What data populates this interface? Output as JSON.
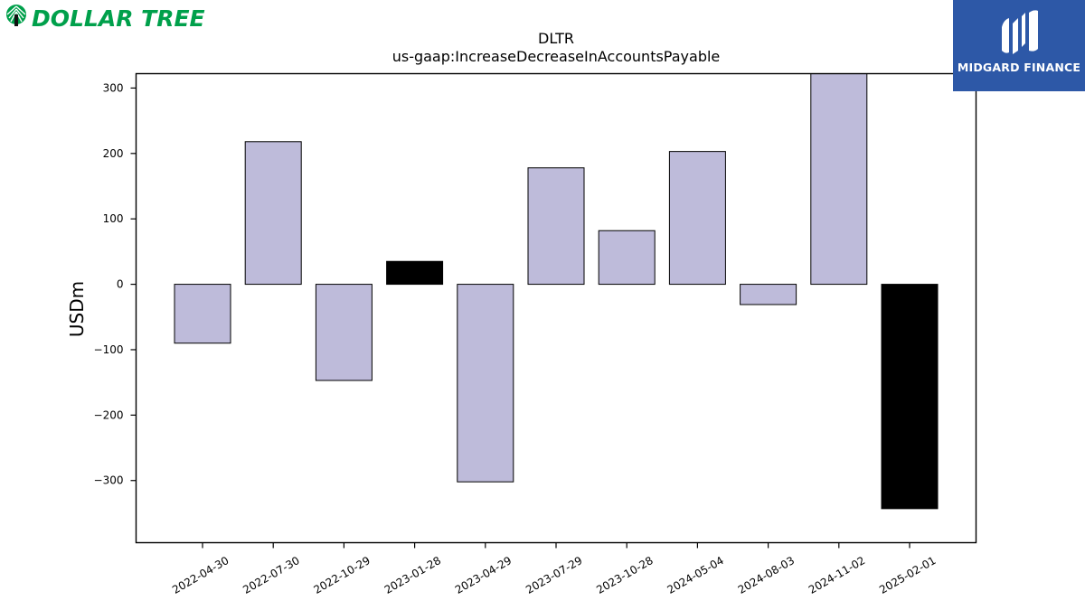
{
  "brand_left": {
    "name": "DOLLAR TREE",
    "color": "#00A04B",
    "icon": "tree-icon"
  },
  "brand_right": {
    "name": "MIDGARD FINANCE",
    "background": "#2D58A7"
  },
  "chart_data": {
    "type": "bar",
    "title": "DLTR",
    "subtitle": "us-gaap:IncreaseDecreaseInAccountsPayable",
    "xlabel": "",
    "ylabel": "USDm",
    "ylim": [
      -395,
      322
    ],
    "yticks": [
      300,
      200,
      100,
      0,
      -100,
      -200,
      -300
    ],
    "ytick_labels": [
      "300",
      "200",
      "100",
      "0",
      "−100",
      "−200",
      "−300"
    ],
    "grid": false,
    "categories": [
      "2022-04-30",
      "2022-07-30",
      "2022-10-29",
      "2023-01-28",
      "2023-04-29",
      "2023-07-29",
      "2023-10-28",
      "2024-05-04",
      "2024-08-03",
      "2024-11-02",
      "2025-02-01"
    ],
    "values": [
      -90,
      218,
      -147,
      35,
      -302,
      178,
      82,
      203,
      -31,
      330,
      -343
    ],
    "bar_colors": [
      "#BEBBDA",
      "#BEBBDA",
      "#BEBBDA",
      "#000000",
      "#BEBBDA",
      "#BEBBDA",
      "#BEBBDA",
      "#BEBBDA",
      "#BEBBDA",
      "#BEBBDA",
      "#000000"
    ]
  }
}
